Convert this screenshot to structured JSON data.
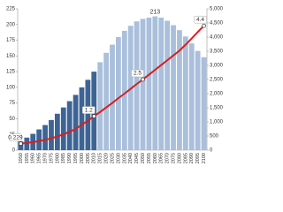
{
  "chart_data": {
    "type": "bar_line",
    "categories": [
      "1950",
      "1955",
      "1960",
      "1965",
      "1970",
      "1975",
      "1980",
      "1985",
      "1990",
      "1995",
      "2000",
      "2005",
      "2010",
      "2015",
      "2020",
      "2025",
      "2030",
      "2035",
      "2040",
      "2045",
      "2050",
      "2055",
      "2060",
      "2065",
      "2070",
      "2075",
      "2080",
      "2085",
      "2090",
      "2095",
      "2100"
    ],
    "series": [
      {
        "type": "bar",
        "axis": "y",
        "colors": [
          "#3d6494",
          "#3d6494",
          "#3d6494",
          "#3d6494",
          "#3d6494",
          "#3d6494",
          "#3d6494",
          "#3d6494",
          "#3d6494",
          "#3d6494",
          "#3d6494",
          "#3d6494",
          "#3d6494",
          "#a9bfdb",
          "#a9bfdb",
          "#a9bfdb",
          "#a9bfdb",
          "#a9bfdb",
          "#a9bfdb",
          "#a9bfdb",
          "#a9bfdb",
          "#a9bfdb",
          "#a9bfdb",
          "#a9bfdb",
          "#a9bfdb",
          "#a9bfdb",
          "#a9bfdb",
          "#a9bfdb",
          "#a9bfdb",
          "#a9bfdb",
          "#a9bfdb"
        ],
        "values": [
          14,
          20,
          26,
          33,
          40,
          48,
          58,
          68,
          78,
          88,
          100,
          112,
          125,
          140,
          155,
          168,
          180,
          190,
          198,
          205,
          209,
          211,
          213,
          211,
          206,
          199,
          191,
          181,
          170,
          158,
          148
        ],
        "value_labels": [
          null,
          null,
          null,
          null,
          null,
          null,
          null,
          null,
          null,
          null,
          null,
          null,
          null,
          null,
          null,
          null,
          null,
          null,
          null,
          null,
          null,
          null,
          "213",
          null,
          null,
          null,
          null,
          null,
          null,
          null,
          null
        ]
      },
      {
        "type": "line",
        "axis": "y2",
        "color": "#d91e1e",
        "values": [
          229,
          255,
          285,
          320,
          365,
          420,
          485,
          560,
          650,
          750,
          900,
          1040,
          1200,
          1350,
          1510,
          1670,
          1840,
          2000,
          2170,
          2340,
          2500,
          2670,
          2840,
          3010,
          3180,
          3350,
          3520,
          3730,
          3950,
          4180,
          4400
        ],
        "value_labels": [
          "0.229",
          null,
          null,
          null,
          null,
          null,
          null,
          null,
          null,
          null,
          null,
          null,
          "1.2",
          null,
          null,
          null,
          null,
          null,
          null,
          null,
          "2.5",
          null,
          null,
          null,
          null,
          null,
          null,
          null,
          null,
          null,
          "4.4"
        ]
      }
    ],
    "ylim": [
      0,
      225
    ],
    "yticks": [
      0,
      25,
      50,
      75,
      100,
      125,
      150,
      175,
      200,
      225
    ],
    "y2lim": [
      0,
      5000
    ],
    "y2ticks": [
      0,
      500,
      {
        "value": 1000,
        "label": "1,000"
      },
      {
        "value": 1500,
        "label": "1,500"
      },
      {
        "value": 2000,
        "label": "2,000"
      },
      {
        "value": 2500,
        "label": "2,500"
      },
      {
        "value": 3000,
        "label": "3,000"
      },
      {
        "value": 3500,
        "label": "3,500"
      },
      {
        "value": 4000,
        "label": "4,000"
      },
      {
        "value": 4500,
        "label": "4,500"
      },
      {
        "value": 5000,
        "label": "5,000"
      }
    ]
  }
}
